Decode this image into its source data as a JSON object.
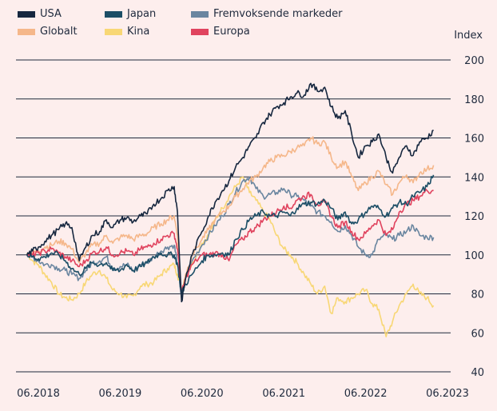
{
  "chart_data": {
    "type": "line",
    "title": "",
    "xlabel": "",
    "ylabel": "Index",
    "ylim": [
      40,
      200
    ],
    "yticks": [
      40,
      60,
      80,
      100,
      120,
      140,
      160,
      180,
      200
    ],
    "xticks": [
      {
        "label": "06.2018",
        "x": 2018.42
      },
      {
        "label": "06.2019",
        "x": 2019.42
      },
      {
        "label": "06.2020",
        "x": 2020.42
      },
      {
        "label": "06.2021",
        "x": 2021.42
      },
      {
        "label": "06.2022",
        "x": 2022.42
      },
      {
        "label": "06.2023",
        "x": 2023.42
      }
    ],
    "xlim": [
      2018.27,
      2023.42
    ],
    "grid": true,
    "legend_position": "top-left",
    "series": [
      {
        "name": "USA",
        "color": "#16273f",
        "x": [
          2018.28,
          2018.35,
          2018.42,
          2018.5,
          2018.58,
          2018.67,
          2018.75,
          2018.83,
          2018.92,
          2019.0,
          2019.08,
          2019.17,
          2019.25,
          2019.33,
          2019.42,
          2019.5,
          2019.58,
          2019.67,
          2019.75,
          2019.83,
          2019.92,
          2020.0,
          2020.08,
          2020.12,
          2020.17,
          2020.22,
          2020.3,
          2020.42,
          2020.5,
          2020.58,
          2020.67,
          2020.75,
          2020.83,
          2020.92,
          2021.0,
          2021.08,
          2021.17,
          2021.25,
          2021.33,
          2021.42,
          2021.5,
          2021.58,
          2021.67,
          2021.75,
          2021.83,
          2021.92,
          2022.0,
          2022.08,
          2022.17,
          2022.25,
          2022.33,
          2022.42,
          2022.5,
          2022.58,
          2022.67,
          2022.75,
          2022.83,
          2022.92,
          2023.0,
          2023.08,
          2023.17,
          2023.25
        ],
        "values": [
          100,
          102,
          104,
          107,
          110,
          113,
          116,
          114,
          97,
          104,
          110,
          112,
          118,
          114,
          118,
          119,
          117,
          120,
          121,
          126,
          129,
          133,
          135,
          122,
          76,
          88,
          100,
          112,
          120,
          127,
          133,
          138,
          145,
          150,
          156,
          160,
          168,
          172,
          176,
          178,
          181,
          183,
          182,
          188,
          184,
          186,
          176,
          170,
          174,
          162,
          150,
          156,
          158,
          162,
          150,
          142,
          150,
          156,
          151,
          158,
          160,
          164
        ]
      },
      {
        "name": "Globalt",
        "color": "#f5b78a",
        "x": [
          2018.28,
          2018.35,
          2018.42,
          2018.5,
          2018.58,
          2018.67,
          2018.75,
          2018.83,
          2018.92,
          2019.0,
          2019.08,
          2019.17,
          2019.25,
          2019.33,
          2019.42,
          2019.5,
          2019.58,
          2019.67,
          2019.75,
          2019.83,
          2019.92,
          2020.0,
          2020.08,
          2020.12,
          2020.17,
          2020.22,
          2020.3,
          2020.42,
          2020.5,
          2020.58,
          2020.67,
          2020.75,
          2020.83,
          2020.92,
          2021.0,
          2021.08,
          2021.17,
          2021.25,
          2021.33,
          2021.42,
          2021.5,
          2021.58,
          2021.67,
          2021.75,
          2021.83,
          2021.92,
          2022.0,
          2022.08,
          2022.17,
          2022.25,
          2022.33,
          2022.42,
          2022.5,
          2022.58,
          2022.67,
          2022.75,
          2022.83,
          2022.92,
          2023.0,
          2023.08,
          2023.17,
          2023.25
        ],
        "values": [
          100,
          101,
          102,
          104,
          105,
          107,
          106,
          103,
          96,
          101,
          105,
          106,
          110,
          106,
          109,
          110,
          108,
          110,
          111,
          114,
          116,
          118,
          120,
          110,
          80,
          90,
          100,
          108,
          113,
          118,
          122,
          125,
          130,
          134,
          138,
          140,
          145,
          148,
          150,
          151,
          153,
          155,
          156,
          160,
          157,
          158,
          150,
          145,
          148,
          140,
          133,
          137,
          140,
          143,
          136,
          131,
          137,
          141,
          137,
          142,
          144,
          146
        ]
      },
      {
        "name": "Japan",
        "color": "#1c4e66",
        "x": [
          2018.28,
          2018.35,
          2018.42,
          2018.5,
          2018.58,
          2018.67,
          2018.75,
          2018.83,
          2018.92,
          2019.0,
          2019.08,
          2019.17,
          2019.25,
          2019.33,
          2019.42,
          2019.5,
          2019.58,
          2019.67,
          2019.75,
          2019.83,
          2019.92,
          2020.0,
          2020.08,
          2020.12,
          2020.17,
          2020.22,
          2020.3,
          2020.42,
          2020.5,
          2020.58,
          2020.67,
          2020.75,
          2020.83,
          2020.92,
          2021.0,
          2021.08,
          2021.17,
          2021.25,
          2021.33,
          2021.42,
          2021.5,
          2021.58,
          2021.67,
          2021.75,
          2021.83,
          2021.92,
          2022.0,
          2022.08,
          2022.17,
          2022.25,
          2022.33,
          2022.42,
          2022.5,
          2022.58,
          2022.67,
          2022.75,
          2022.83,
          2022.92,
          2023.0,
          2023.08,
          2023.17,
          2023.25
        ],
        "values": [
          100,
          99,
          98,
          99,
          101,
          100,
          97,
          93,
          90,
          93,
          96,
          95,
          96,
          92,
          92,
          95,
          92,
          94,
          96,
          99,
          101,
          100,
          100,
          95,
          80,
          85,
          90,
          97,
          100,
          100,
          101,
          100,
          108,
          113,
          118,
          120,
          122,
          120,
          120,
          122,
          120,
          124,
          126,
          127,
          126,
          128,
          124,
          118,
          122,
          116,
          118,
          122,
          125,
          124,
          120,
          124,
          127,
          126,
          130,
          132,
          135,
          141
        ]
      },
      {
        "name": "Kina",
        "color": "#f8d775",
        "x": [
          2018.28,
          2018.35,
          2018.42,
          2018.5,
          2018.58,
          2018.67,
          2018.75,
          2018.83,
          2018.92,
          2019.0,
          2019.08,
          2019.17,
          2019.25,
          2019.33,
          2019.42,
          2019.5,
          2019.58,
          2019.67,
          2019.75,
          2019.83,
          2019.92,
          2020.0,
          2020.08,
          2020.12,
          2020.17,
          2020.22,
          2020.3,
          2020.42,
          2020.5,
          2020.58,
          2020.67,
          2020.75,
          2020.83,
          2020.92,
          2021.0,
          2021.08,
          2021.17,
          2021.25,
          2021.33,
          2021.42,
          2021.5,
          2021.58,
          2021.67,
          2021.75,
          2021.83,
          2021.92,
          2022.0,
          2022.08,
          2022.17,
          2022.25,
          2022.33,
          2022.42,
          2022.5,
          2022.58,
          2022.67,
          2022.75,
          2022.83,
          2022.92,
          2023.0,
          2023.08,
          2023.17,
          2023.25
        ],
        "values": [
          101,
          97,
          95,
          90,
          86,
          80,
          78,
          77,
          80,
          86,
          90,
          92,
          88,
          82,
          80,
          78,
          79,
          84,
          85,
          86,
          90,
          93,
          95,
          90,
          82,
          90,
          96,
          106,
          110,
          118,
          124,
          130,
          135,
          140,
          132,
          128,
          122,
          118,
          110,
          103,
          100,
          96,
          90,
          85,
          80,
          84,
          70,
          78,
          76,
          78,
          80,
          82,
          75,
          72,
          58,
          66,
          74,
          80,
          85,
          80,
          78,
          74
        ]
      },
      {
        "name": "Fremvoksende markeder",
        "color": "#6a86a0",
        "x": [
          2018.28,
          2018.35,
          2018.42,
          2018.5,
          2018.58,
          2018.67,
          2018.75,
          2018.83,
          2018.92,
          2019.0,
          2019.08,
          2019.17,
          2019.25,
          2019.33,
          2019.42,
          2019.5,
          2019.58,
          2019.67,
          2019.75,
          2019.83,
          2019.92,
          2020.0,
          2020.08,
          2020.12,
          2020.17,
          2020.22,
          2020.3,
          2020.42,
          2020.5,
          2020.58,
          2020.67,
          2020.75,
          2020.83,
          2020.92,
          2021.0,
          2021.08,
          2021.17,
          2021.25,
          2021.33,
          2021.42,
          2021.5,
          2021.58,
          2021.67,
          2021.75,
          2021.83,
          2021.92,
          2022.0,
          2022.08,
          2022.17,
          2022.25,
          2022.33,
          2022.42,
          2022.5,
          2022.58,
          2022.67,
          2022.75,
          2022.83,
          2022.92,
          2023.0,
          2023.08,
          2023.17,
          2023.25
        ],
        "values": [
          100,
          99,
          97,
          95,
          95,
          93,
          92,
          90,
          88,
          92,
          96,
          97,
          99,
          93,
          94,
          95,
          92,
          95,
          96,
          99,
          102,
          104,
          105,
          96,
          78,
          88,
          97,
          105,
          110,
          115,
          120,
          126,
          132,
          138,
          140,
          134,
          130,
          131,
          132,
          134,
          131,
          130,
          128,
          125,
          122,
          120,
          117,
          112,
          115,
          110,
          104,
          100,
          100,
          108,
          110,
          108,
          110,
          112,
          115,
          110,
          109,
          109
        ]
      },
      {
        "name": "Europa",
        "color": "#e0435e",
        "x": [
          2018.28,
          2018.35,
          2018.42,
          2018.5,
          2018.58,
          2018.67,
          2018.75,
          2018.83,
          2018.92,
          2019.0,
          2019.08,
          2019.17,
          2019.25,
          2019.33,
          2019.42,
          2019.5,
          2019.58,
          2019.67,
          2019.75,
          2019.83,
          2019.92,
          2020.0,
          2020.08,
          2020.12,
          2020.17,
          2020.22,
          2020.3,
          2020.42,
          2020.5,
          2020.58,
          2020.67,
          2020.75,
          2020.83,
          2020.92,
          2021.0,
          2021.08,
          2021.17,
          2021.25,
          2021.33,
          2021.42,
          2021.5,
          2021.58,
          2021.67,
          2021.75,
          2021.83,
          2021.92,
          2022.0,
          2022.08,
          2022.17,
          2022.25,
          2022.33,
          2022.42,
          2022.5,
          2022.58,
          2022.67,
          2022.75,
          2022.83,
          2022.92,
          2023.0,
          2023.08,
          2023.17,
          2023.25
        ],
        "values": [
          100,
          100,
          101,
          102,
          103,
          101,
          99,
          97,
          94,
          97,
          101,
          102,
          104,
          100,
          101,
          102,
          100,
          103,
          104,
          106,
          108,
          110,
          111,
          103,
          80,
          88,
          95,
          100,
          100,
          101,
          100,
          97,
          105,
          108,
          112,
          114,
          118,
          120,
          122,
          125,
          124,
          128,
          130,
          131,
          126,
          127,
          120,
          114,
          117,
          112,
          108,
          111,
          115,
          118,
          110,
          113,
          122,
          126,
          128,
          130,
          133,
          133
        ]
      }
    ]
  },
  "legend": {
    "items": [
      {
        "label": "USA",
        "color": "#16273f"
      },
      {
        "label": "Japan",
        "color": "#1c4e66"
      },
      {
        "label": "Fremvoksende markeder",
        "color": "#6a86a0"
      },
      {
        "label": "Globalt",
        "color": "#f5b78a"
      },
      {
        "label": "Kina",
        "color": "#f8d775"
      },
      {
        "label": "Europa",
        "color": "#e0435e"
      }
    ]
  },
  "axis": {
    "y_title": "Index"
  }
}
